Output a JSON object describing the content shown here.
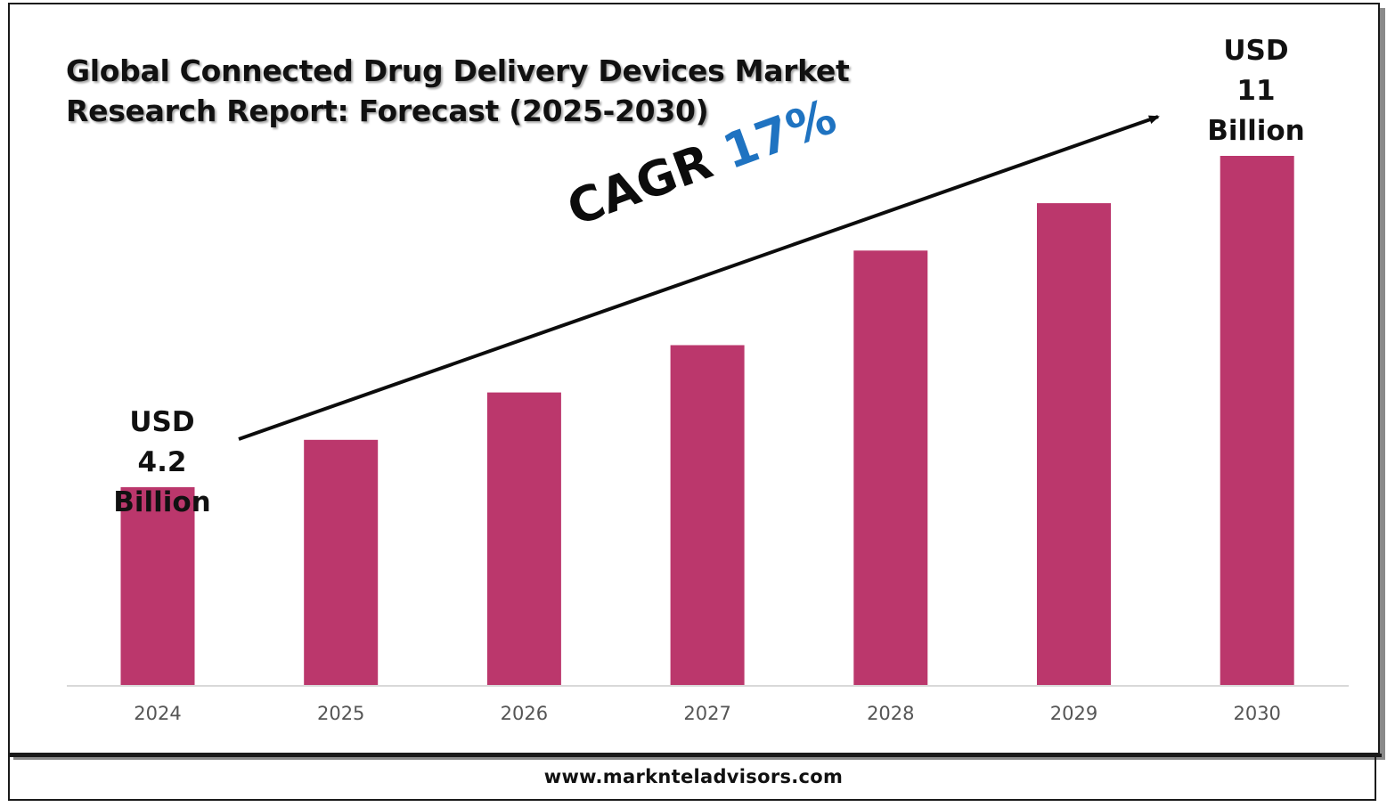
{
  "title_lines": [
    "Global Connected Drug Delivery Devices Market",
    "Research Report: Forecast (2025-2030)"
  ],
  "cagr": {
    "label": "CAGR",
    "value": "17%"
  },
  "callouts": {
    "start": [
      "USD",
      "4.2",
      "Billion"
    ],
    "end": [
      "USD",
      "11",
      "Billion"
    ]
  },
  "website": "www.marknteladvisors.com",
  "colors": {
    "bar": "#bb376c",
    "cagr_value": "#1f73c1",
    "axis": "#d9d9d9",
    "tick_text": "#555555"
  },
  "chart_data": {
    "type": "bar",
    "title": "Global Connected Drug Delivery Devices Market Research Report: Forecast (2025-2030)",
    "xlabel": "",
    "ylabel": "",
    "categories": [
      "2024",
      "2025",
      "2026",
      "2027",
      "2028",
      "2029",
      "2030"
    ],
    "values": [
      4.2,
      5.2,
      6.2,
      7.2,
      9.2,
      10.2,
      11.2
    ],
    "ylim": [
      0,
      11.2
    ],
    "units": "USD Billion",
    "grid": false,
    "legend": "none",
    "annotations": [
      {
        "text": "USD 4.2 Billion",
        "category": "2024"
      },
      {
        "text": "USD 11 Billion",
        "category": "2030"
      },
      {
        "text": "CAGR 17%"
      }
    ]
  }
}
